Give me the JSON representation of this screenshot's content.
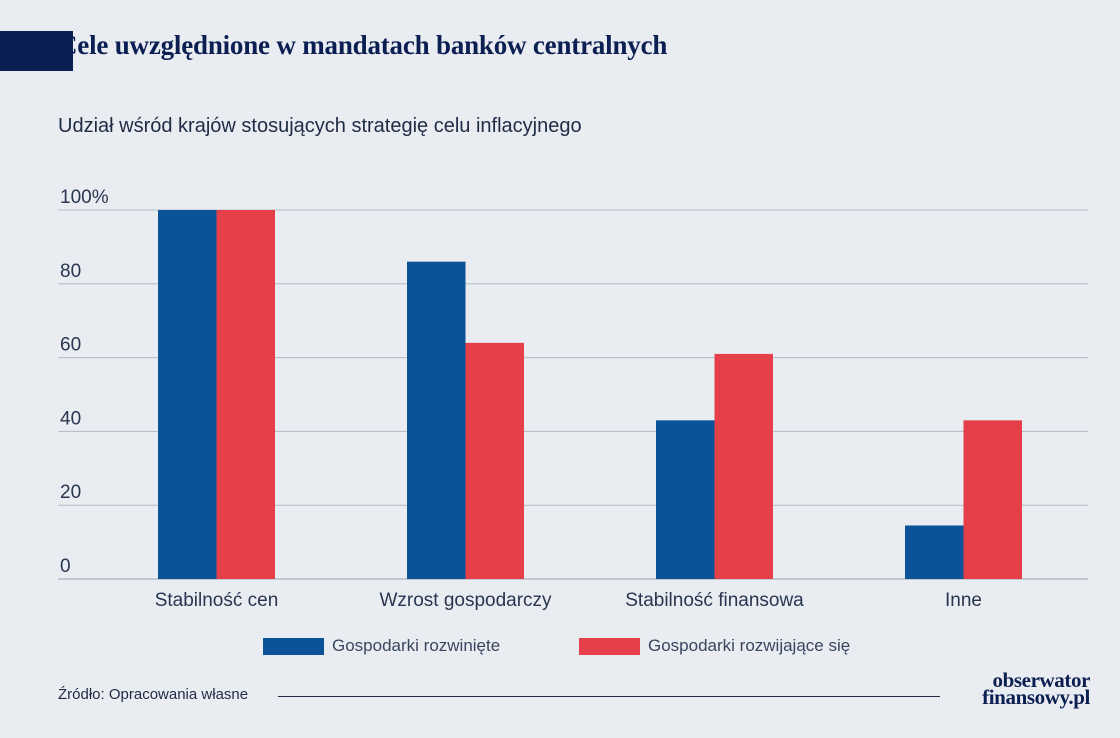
{
  "header": {
    "title": "Cele uwzględnione w mandatach banków centralnych",
    "subtitle": "Udział wśród krajów stosujących strategię celu inflacyjnego"
  },
  "chart_data": {
    "type": "bar",
    "categories": [
      "Stabilność cen",
      "Wzrost gospodarczy",
      "Stabilność finansowa",
      "Inne"
    ],
    "series": [
      {
        "name": "Gospodarki rozwinięte",
        "values": [
          100,
          86,
          43,
          14.5
        ],
        "color": "#0a5399"
      },
      {
        "name": "Gospodarki rozwijające się",
        "values": [
          100,
          64,
          61,
          43
        ],
        "color": "#e5404a"
      }
    ],
    "yticks": [
      "0",
      "20",
      "40",
      "60",
      "80",
      "100%"
    ],
    "ylim": [
      0,
      100
    ],
    "grid": true,
    "legend_position": "bottom"
  },
  "footer": {
    "source": "Źródło: Opracowania własne",
    "logo_line1": "obserwator",
    "logo_line2": "finansowy.pl"
  }
}
